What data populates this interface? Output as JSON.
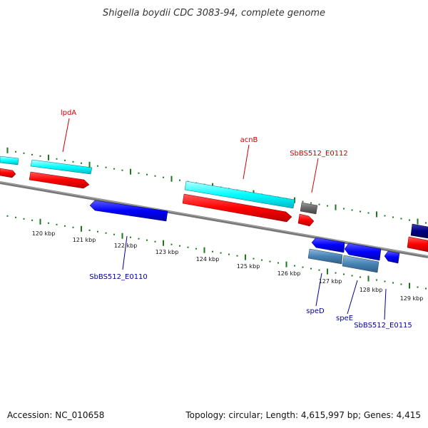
{
  "title": "Shigella boydii CDC 3083-94, complete genome",
  "footer": {
    "accession": "Accession: NC_010658",
    "summary": "Topology: circular; Length: 4,615,997 bp; Genes: 4,415"
  },
  "colors": {
    "backbone": "#888888",
    "tick": "#1a7a1a",
    "forward_cds": "#ff0000",
    "forward_gene": "#00ffff",
    "reverse_cds": "#0000ff",
    "reverse_gene": "#4682b4",
    "reverse_dark": "#000080",
    "other": "#666666",
    "label_forward": "#cc0000",
    "label_reverse": "#000099"
  },
  "ruler": {
    "kbp_labels": [
      "120 kbp",
      "121 kbp",
      "122 kbp",
      "123 kbp",
      "124 kbp",
      "125 kbp",
      "126 kbp",
      "127 kbp",
      "128 kbp",
      "129 kbp"
    ]
  },
  "gene_labels": {
    "forward": [
      "lpdA",
      "acnB",
      "SbBS512_E0112"
    ],
    "reverse": [
      "SbBS512_E0110",
      "speD",
      "speE",
      "SbBS512_E0115"
    ]
  }
}
